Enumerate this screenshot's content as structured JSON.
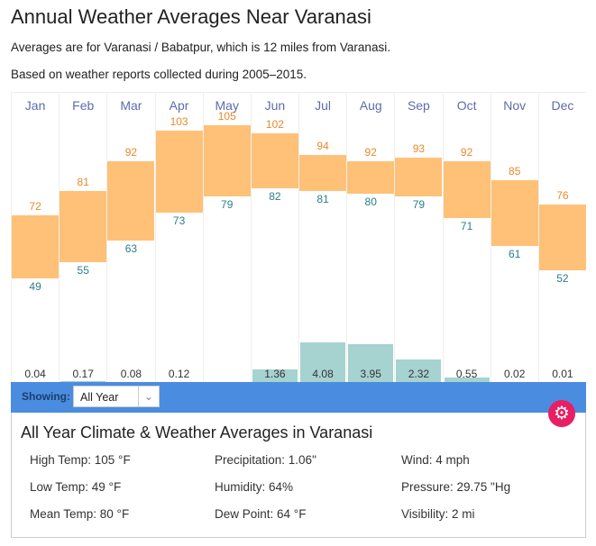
{
  "title": "Annual Weather Averages Near Varanasi",
  "subtitle1": "Averages are for Varanasi / Babatpur, which is 12 miles from Varanasi.",
  "subtitle2": "Based on weather reports collected during 2005–2015.",
  "chart_data": {
    "type": "bar",
    "categories": [
      "Jan",
      "Feb",
      "Mar",
      "Apr",
      "May",
      "Jun",
      "Jul",
      "Aug",
      "Sep",
      "Oct",
      "Nov",
      "Dec"
    ],
    "series": [
      {
        "name": "High Temp",
        "values": [
          72,
          81,
          92,
          103,
          105,
          102,
          94,
          92,
          93,
          92,
          85,
          76
        ],
        "color": "#e8892b"
      },
      {
        "name": "Low Temp",
        "values": [
          49,
          55,
          63,
          73,
          79,
          82,
          81,
          80,
          79,
          71,
          61,
          52
        ],
        "color": "#2a7f86"
      },
      {
        "name": "Precipitation",
        "values_display": [
          "0.04",
          "0.17",
          "0.08",
          "0.12",
          "",
          "1.36",
          "4.08",
          "3.95",
          "2.32",
          "0.55",
          "0.02",
          "0.01"
        ],
        "values": [
          0.04,
          0.17,
          0.08,
          0.12,
          null,
          1.36,
          4.08,
          3.95,
          2.32,
          0.55,
          0.02,
          0.01
        ],
        "color": "#a6d2d0"
      }
    ],
    "temp_range_color": "#ffc177"
  },
  "toolbar": {
    "showing_label": "Showing:",
    "selected": "All Year",
    "accent": "#4a8de0"
  },
  "panel": {
    "title": "All Year Climate & Weather Averages in Varanasi",
    "stats": [
      [
        "High Temp: 105 °F",
        "Precipitation: 1.06\"",
        "Wind: 4 mph"
      ],
      [
        "Low Temp: 49 °F",
        "Humidity: 64%",
        "Pressure: 29.75 \"Hg"
      ],
      [
        "Mean Temp: 80 °F",
        "Dew Point: 64 °F",
        "Visibility: 2 mi"
      ]
    ]
  },
  "gear_icon": "gear-icon"
}
